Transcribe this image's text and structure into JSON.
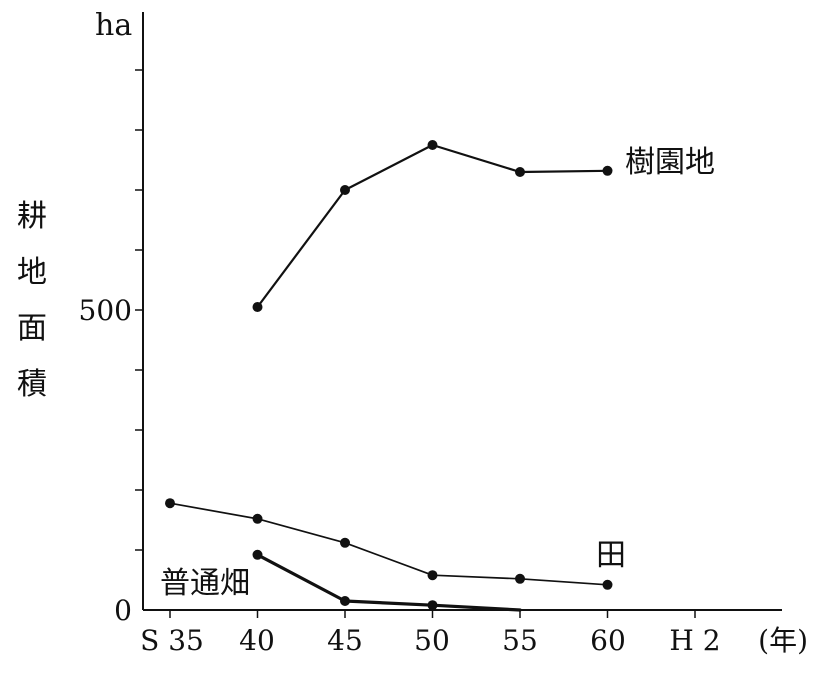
{
  "chart_data": {
    "type": "line",
    "title": "",
    "ylabel": "耕地面積",
    "yunit": "ha",
    "xlabel": "",
    "x_unit_label": "(年)",
    "categories": [
      "S 35",
      "40",
      "45",
      "50",
      "55",
      "60",
      "H 2"
    ],
    "y_tick_labels": [
      "0",
      "500"
    ],
    "ylim": [
      0,
      1000
    ],
    "grid": false,
    "legend": "inline labels",
    "series": [
      {
        "name": "樹園地",
        "values": [
          null,
          505,
          700,
          775,
          730,
          732,
          null
        ]
      },
      {
        "name": "田",
        "values": [
          178,
          152,
          112,
          58,
          52,
          42,
          null
        ]
      },
      {
        "name": "普通畑",
        "values": [
          null,
          92,
          15,
          8,
          0,
          null,
          null
        ]
      }
    ]
  },
  "colors": {
    "line": "#111111",
    "background": "#ffffff"
  }
}
